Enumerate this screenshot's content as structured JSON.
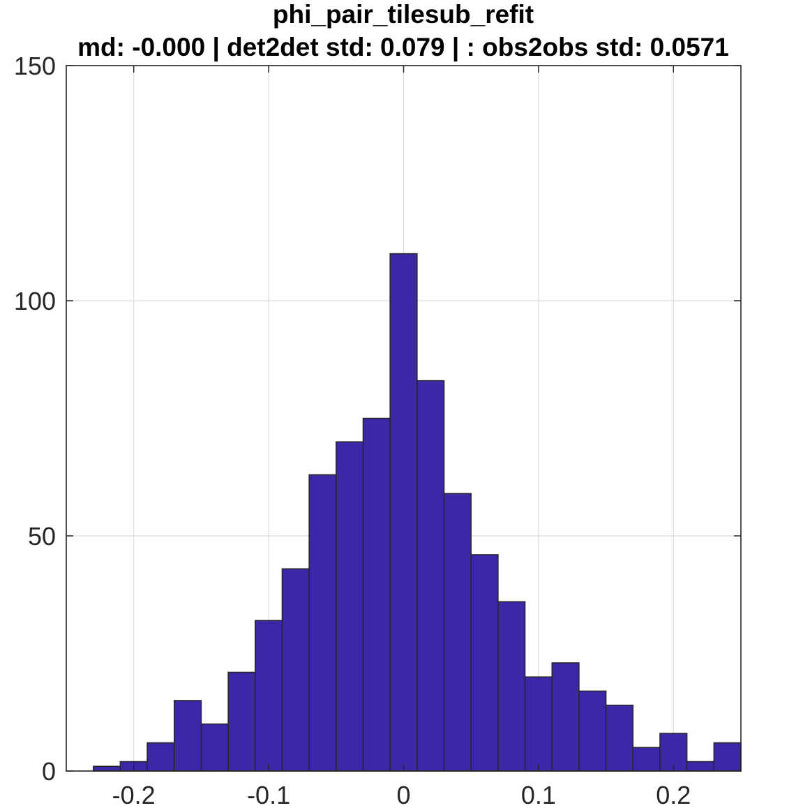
{
  "chart_data": {
    "type": "bar",
    "title": "phi_pair_tilesub_refit",
    "subtitle": "md: -0.000 | det2det std: 0.079 | : obs2obs std: 0.0571",
    "xlabel": "",
    "ylabel": "",
    "xlim": [
      -0.25,
      0.25
    ],
    "ylim": [
      0,
      150
    ],
    "grid": true,
    "bin_edges": [
      -0.25,
      -0.23,
      -0.21,
      -0.19,
      -0.17,
      -0.15,
      -0.13,
      -0.11,
      -0.09,
      -0.07,
      -0.05,
      -0.03,
      -0.01,
      0.01,
      0.03,
      0.05,
      0.07,
      0.09,
      0.11,
      0.13,
      0.15,
      0.17,
      0.19,
      0.21,
      0.23,
      0.25
    ],
    "values": [
      0,
      1,
      2,
      6,
      15,
      10,
      21,
      32,
      43,
      63,
      70,
      75,
      110,
      83,
      59,
      46,
      36,
      20,
      23,
      17,
      14,
      5,
      8,
      2,
      6
    ],
    "xticks": [
      -0.2,
      -0.1,
      0,
      0.1,
      0.2
    ],
    "xtick_labels": [
      "-0.2",
      "-0.1",
      "0",
      "0.1",
      "0.2"
    ],
    "yticks": [
      0,
      50,
      100,
      150
    ],
    "ytick_labels": [
      "0",
      "50",
      "100",
      "150"
    ],
    "bar_color": "#3d27a8",
    "edge_color": "#262626"
  }
}
